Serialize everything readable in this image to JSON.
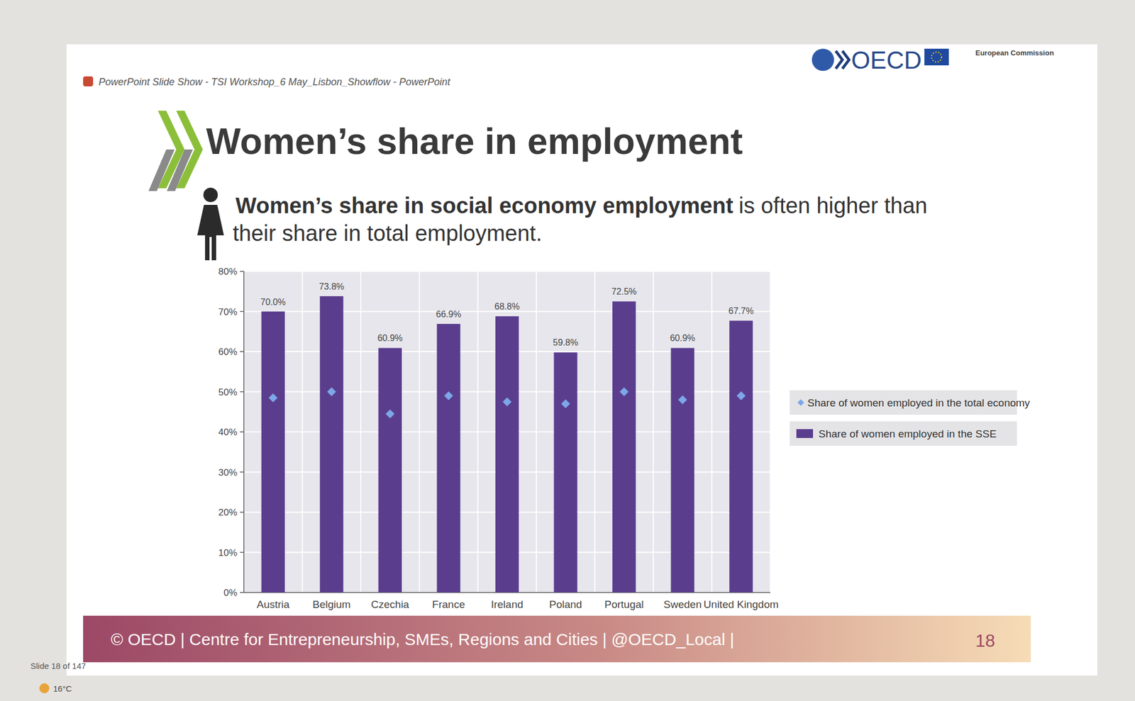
{
  "chart_data": {
    "type": "bar",
    "title": "Women’s share in employment",
    "categories": [
      "Austria",
      "Belgium",
      "Czechia",
      "France",
      "Ireland",
      "Poland",
      "Portugal",
      "Sweden",
      "United Kingdom"
    ],
    "series": [
      {
        "name": "Share of women employed in the total economy",
        "type": "scatter",
        "marker": "diamond",
        "color": "#7da7e8",
        "values": [
          48.5,
          50,
          44.5,
          49,
          47.5,
          47,
          50,
          48,
          49
        ]
      },
      {
        "name": "Share of women employed in the SSE",
        "type": "bar",
        "color": "#5b3d8e",
        "values": [
          70.0,
          73.8,
          60.9,
          66.9,
          68.8,
          59.8,
          72.5,
          60.9,
          67.7
        ],
        "value_labels": [
          "70.0%",
          "73.8%",
          "60.9%",
          "66.9%",
          "68.8%",
          "59.8%",
          "72.5%",
          "60.9%",
          "67.7%"
        ]
      }
    ],
    "ylim": [
      0,
      80
    ],
    "yticks": [
      {
        "value": 0,
        "label": "0%"
      },
      {
        "value": 10,
        "label": "10%"
      },
      {
        "value": 20,
        "label": "20%"
      },
      {
        "value": 30,
        "label": "30%"
      },
      {
        "value": 40,
        "label": "40%"
      },
      {
        "value": 50,
        "label": "50%"
      },
      {
        "value": 60,
        "label": "60%"
      },
      {
        "value": 70,
        "label": "70%"
      },
      {
        "value": 80,
        "label": "80%"
      }
    ],
    "grid": true,
    "legend": "right",
    "data_labels": true
  },
  "slide": {
    "window_title": "PowerPoint Slide Show  -  TSI Workshop_6 May_Lisbon_Showflow - PowerPoint",
    "logo": "OECD",
    "partner": "European Commission",
    "headline_bold": "Women’s share in social economy employment",
    "headline_rest": "is often higher than",
    "headline_line2": "their share in total employment.",
    "footer": "© OECD | Centre for Entrepreneurship, SMEs, Regions and Cities | @OECD_Local |",
    "page_number": "18",
    "slide_counter": "Slide 18 of 147",
    "temperature": "16°C"
  }
}
